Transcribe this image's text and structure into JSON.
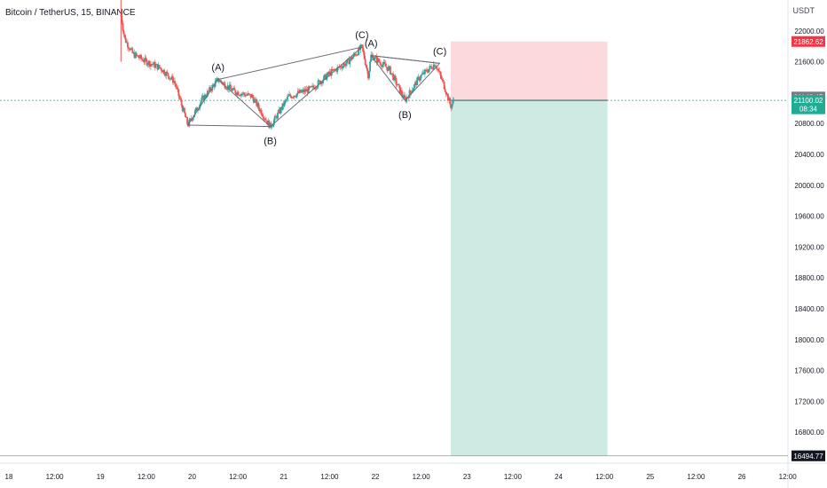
{
  "header": {
    "symbol_title": "Bitcoin / TetherUS, 15, BINANCE",
    "currency": "USDT"
  },
  "chart_data": {
    "type": "candlestick",
    "yaxis": {
      "range": [
        16400,
        22400
      ],
      "ticks": [
        22000,
        21600,
        20800,
        20400,
        20000,
        19600,
        19200,
        18800,
        18400,
        18000,
        17600,
        17200,
        16800
      ],
      "tick_labels": [
        "22000.00",
        "21600.00",
        "20800.00",
        "20400.00",
        "20000.00",
        "19600.00",
        "19200.00",
        "18800.00",
        "18400.00",
        "18000.00",
        "17600.00",
        "17200.00",
        "16800.00"
      ]
    },
    "xaxis": {
      "range": [
        0,
        8.6
      ],
      "ticks": [
        0,
        0.5,
        1,
        1.5,
        2,
        2.5,
        3,
        3.5,
        4,
        4.5,
        5,
        5.5,
        6,
        6.5,
        7,
        7.5,
        8,
        8.5
      ],
      "tick_labels": [
        "18",
        "12:00",
        "19",
        "12:00",
        "20",
        "12:00",
        "21",
        "12:00",
        "22",
        "12:00",
        "23",
        "12:00",
        "24",
        "12:00",
        "25",
        "12:00",
        "26",
        "12:00"
      ]
    },
    "price_path": [
      {
        "x": 1.32,
        "y": 22200
      },
      {
        "x": 1.36,
        "y": 21900
      },
      {
        "x": 1.45,
        "y": 21700
      },
      {
        "x": 1.6,
        "y": 21600
      },
      {
        "x": 1.75,
        "y": 21520
      },
      {
        "x": 1.9,
        "y": 21350
      },
      {
        "x": 2.05,
        "y": 20780
      },
      {
        "x": 2.2,
        "y": 21100
      },
      {
        "x": 2.38,
        "y": 21370
      },
      {
        "x": 2.55,
        "y": 21220
      },
      {
        "x": 2.75,
        "y": 21150
      },
      {
        "x": 2.95,
        "y": 20760
      },
      {
        "x": 3.15,
        "y": 21150
      },
      {
        "x": 3.4,
        "y": 21250
      },
      {
        "x": 3.6,
        "y": 21450
      },
      {
        "x": 3.8,
        "y": 21600
      },
      {
        "x": 3.95,
        "y": 21790
      },
      {
        "x": 4.02,
        "y": 21420
      },
      {
        "x": 4.05,
        "y": 21680
      },
      {
        "x": 4.25,
        "y": 21500
      },
      {
        "x": 4.42,
        "y": 21100
      },
      {
        "x": 4.58,
        "y": 21400
      },
      {
        "x": 4.75,
        "y": 21580
      },
      {
        "x": 4.85,
        "y": 21280
      },
      {
        "x": 4.92,
        "y": 21020
      },
      {
        "x": 4.96,
        "y": 21120
      }
    ],
    "wave_patterns": [
      {
        "points": [
          {
            "x": 2.05,
            "y": 20780
          },
          {
            "x": 2.38,
            "y": 21370
          },
          {
            "x": 2.95,
            "y": 20760
          },
          {
            "x": 3.95,
            "y": 21790
          }
        ]
      },
      {
        "points": [
          {
            "x": 4.05,
            "y": 21680
          },
          {
            "x": 4.42,
            "y": 21100
          },
          {
            "x": 4.8,
            "y": 21580
          }
        ]
      }
    ],
    "wave_labels": [
      {
        "text": "(A)",
        "x": 2.38,
        "y": 21370,
        "pos": "above"
      },
      {
        "text": "(B)",
        "x": 2.95,
        "y": 20760,
        "pos": "below"
      },
      {
        "text": "(C)",
        "x": 3.95,
        "y": 21790,
        "pos": "above"
      },
      {
        "text": "(A)",
        "x": 4.05,
        "y": 21680,
        "pos": "above"
      },
      {
        "text": "(B)",
        "x": 4.42,
        "y": 21100,
        "pos": "below"
      },
      {
        "text": "(C)",
        "x": 4.8,
        "y": 21580,
        "pos": "above"
      }
    ],
    "position": {
      "entry": 21100.02,
      "stop": 21862.62,
      "target": 16495.8,
      "x_start": 4.92,
      "x_end": 6.63,
      "stop_color": "#fcd9dd",
      "target_color": "#cdebe3"
    },
    "current_price_line": 21100.02,
    "bottom_line": 16494.77,
    "price_labels": [
      {
        "value": "21862.62",
        "y": 21862.62,
        "bg": "#f23645",
        "fg": "#ffffff"
      },
      {
        "value": "21143.47",
        "y": 21143.47,
        "bg": "#787b86",
        "fg": "#ffffff"
      },
      {
        "value": "21100.02",
        "y": 21100.02,
        "bg": "#22ab94",
        "fg": "#ffffff"
      },
      {
        "value": "08:34",
        "y": 20990,
        "bg": "#22ab94",
        "fg": "#ffffff"
      },
      {
        "value": "16495.80",
        "y": 16495.8,
        "bg": "#22ab94",
        "fg": "#ffffff"
      },
      {
        "value": "16494.77",
        "y": 16494.77,
        "bg": "#131722",
        "fg": "#ffffff"
      }
    ],
    "colors": {
      "up": "#26a69a",
      "down": "#ef5350",
      "pattern_line": "#b2b5be"
    }
  }
}
